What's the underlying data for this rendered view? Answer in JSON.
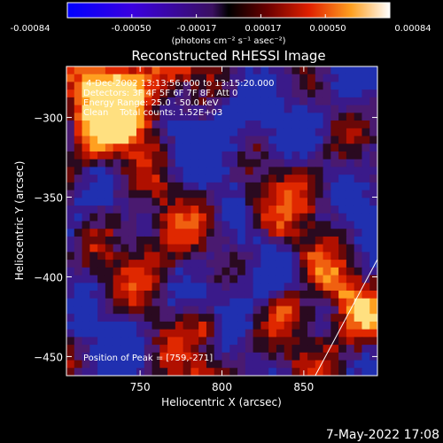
{
  "colorbar": {
    "tick_labels": [
      "-0.00084",
      "-0.00050",
      "-0.00017",
      "0.00017",
      "0.00050",
      "0.00084"
    ],
    "units": "(photons cm⁻² s⁻¹ asec⁻²)",
    "range": [
      -0.00084,
      0.00084
    ]
  },
  "chart_data": {
    "type": "heatmap",
    "title": "Reconstructed RHESSI Image",
    "xlabel": "Heliocentric X (arcsec)",
    "ylabel": "Heliocentric Y (arcsec)",
    "xlim": [
      705,
      895
    ],
    "ylim": [
      -462,
      -268
    ],
    "x_ticks": [
      750,
      800,
      850
    ],
    "y_ticks": [
      -300,
      -350,
      -400,
      -450
    ],
    "x_tick_labels": [
      "750",
      "800",
      "850"
    ],
    "y_tick_labels": [
      "−300",
      "−350",
      "−400",
      "−450"
    ],
    "annotations": [
      " 4-Dec-2002 13:13:56.000 to 13:15:20.000",
      "Detectors: 3F 4F 5F 6F 7F 8F, Att 0",
      "Energy Range: 25.0 - 50.0 keV",
      "Clean    Total counts: 1.52E+03"
    ],
    "peak_label": "Position of Peak = [759,-271]",
    "peak": [
      759,
      -271
    ],
    "limb_line": [
      [
        857,
        -462
      ],
      [
        895,
        -389
      ]
    ]
  },
  "footer": {
    "date": "7-May-2022 17:08"
  }
}
